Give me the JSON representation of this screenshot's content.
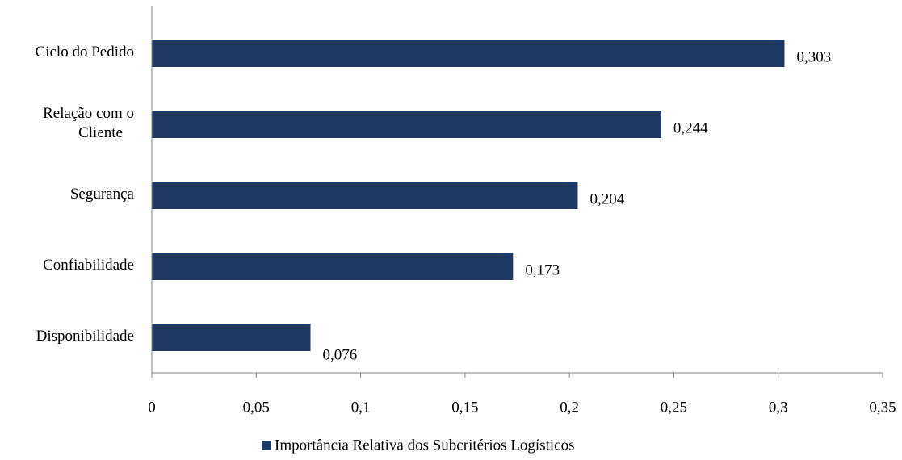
{
  "chart_data": {
    "type": "bar",
    "orientation": "horizontal",
    "categories": [
      "Ciclo do Pedido",
      "Relação com o Cliente",
      "Segurança",
      "Confiabilidade",
      "Disponibilidade"
    ],
    "category_lines": [
      [
        "Ciclo do Pedido"
      ],
      [
        "Relação com o",
        "Cliente"
      ],
      [
        "Segurança"
      ],
      [
        "Confiabilidade"
      ],
      [
        "Disponibilidade"
      ]
    ],
    "series": [
      {
        "name": "Importância Relativa dos Subcritérios Logísticos",
        "values": [
          0.303,
          0.244,
          0.204,
          0.173,
          0.076
        ],
        "value_labels": [
          "0,303",
          "0,244",
          "0,204",
          "0,173",
          "0,076"
        ],
        "color": "#1f3864"
      }
    ],
    "xlim": [
      0,
      0.35
    ],
    "x_ticks": [
      0,
      0.05,
      0.1,
      0.15,
      0.2,
      0.25,
      0.3,
      0.35
    ],
    "x_tick_labels": [
      "0",
      "0,05",
      "0,1",
      "0,15",
      "0,2",
      "0,25",
      "0,3",
      "0,35"
    ],
    "grid": false,
    "legend_position": "bottom"
  }
}
